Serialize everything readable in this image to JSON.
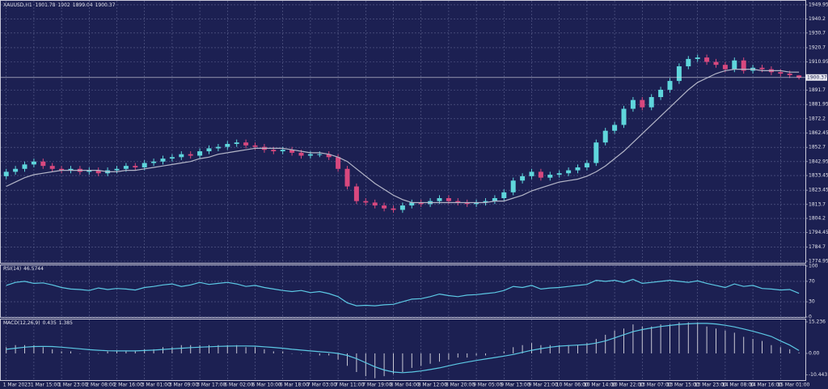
{
  "chart_data": [
    {
      "type": "candlestick",
      "title": "XAUUSD,H1",
      "categories": [
        "1 Mar 2023",
        null,
        null,
        "1 Mar 15:00",
        null,
        null,
        "1 Mar 23:00",
        null,
        null,
        "2 Mar 08:00",
        null,
        null,
        "2 Mar 16:00",
        null,
        null,
        "3 Mar 01:00",
        null,
        null,
        "3 Mar 09:00",
        null,
        null,
        "3 Mar 17:00",
        null,
        null,
        "6 Mar 02:00",
        null,
        null,
        "6 Mar 10:00",
        null,
        null,
        "6 Mar 18:00",
        null,
        null,
        "7 Mar 03:00",
        null,
        null,
        "7 Mar 11:00",
        null,
        null,
        "7 Mar 19:00",
        null,
        null,
        "8 Mar 04:00",
        null,
        null,
        "8 Mar 12:00",
        null,
        null,
        "8 Mar 20:00",
        null,
        null,
        "9 Mar 05:00",
        null,
        null,
        "9 Mar 13:00",
        null,
        null,
        "9 Mar 21:00",
        null,
        null,
        "10 Mar 06:00",
        null,
        null,
        "10 Mar 14:00",
        null,
        null,
        "10 Mar 22:00",
        null,
        null,
        "13 Mar 07:00",
        null,
        null,
        "13 Mar 15:00",
        null,
        null,
        "13 Mar 23:00",
        null,
        null,
        "14 Mar 08:00",
        null,
        null,
        "14 Mar 16:00",
        null,
        null,
        "15 Mar 01:00",
        null,
        null
      ],
      "open": [
        1833,
        1836,
        1838,
        1841,
        1843,
        1840,
        1838,
        1837,
        1838,
        1836,
        1837,
        1835,
        1837,
        1838,
        1840,
        1839,
        1842,
        1843,
        1845,
        1846,
        1848,
        1847,
        1850,
        1852,
        1853,
        1855,
        1856,
        1854,
        1853,
        1851,
        1850,
        1851,
        1849,
        1847,
        1848,
        1848,
        1846,
        1838,
        1826,
        1816,
        1815,
        1813,
        1811,
        1810,
        1813,
        1815,
        1814,
        1816,
        1818,
        1816,
        1815,
        1814,
        1815,
        1816,
        1818,
        1822,
        1830,
        1833,
        1836,
        1832,
        1834,
        1835,
        1837,
        1839,
        1842,
        1856,
        1864,
        1868,
        1879,
        1885,
        1880,
        1887,
        1892,
        1898,
        1908,
        1913,
        1914,
        1911,
        1909,
        1906,
        1912,
        1905,
        1907,
        1906,
        1904,
        1903,
        1901.78
      ],
      "high": [
        1838,
        1840,
        1843,
        1845,
        1845,
        1842,
        1840,
        1840,
        1840,
        1839,
        1839,
        1839,
        1840,
        1842,
        1842,
        1844,
        1845,
        1847,
        1848,
        1850,
        1850,
        1852,
        1854,
        1855,
        1857,
        1858,
        1858,
        1856,
        1855,
        1853,
        1853,
        1853,
        1851,
        1850,
        1850,
        1850,
        1848,
        1840,
        1828,
        1818,
        1817,
        1815,
        1813,
        1815,
        1817,
        1817,
        1818,
        1820,
        1820,
        1818,
        1817,
        1817,
        1818,
        1820,
        1824,
        1832,
        1835,
        1838,
        1838,
        1836,
        1837,
        1839,
        1841,
        1844,
        1858,
        1866,
        1870,
        1881,
        1887,
        1887,
        1889,
        1894,
        1900,
        1910,
        1915,
        1916,
        1916,
        1913,
        1911,
        1914,
        1914,
        1909,
        1909,
        1908,
        1906,
        1905,
        1902.0
      ],
      "low": [
        1831,
        1834,
        1836,
        1839,
        1838,
        1836,
        1835,
        1835,
        1834,
        1834,
        1833,
        1833,
        1835,
        1836,
        1837,
        1837,
        1840,
        1841,
        1843,
        1844,
        1845,
        1845,
        1848,
        1850,
        1851,
        1853,
        1852,
        1851,
        1849,
        1848,
        1848,
        1847,
        1845,
        1845,
        1846,
        1844,
        1836,
        1824,
        1814,
        1813,
        1811,
        1809,
        1808,
        1808,
        1811,
        1812,
        1812,
        1814,
        1814,
        1813,
        1812,
        1812,
        1813,
        1814,
        1816,
        1820,
        1828,
        1831,
        1830,
        1830,
        1832,
        1833,
        1835,
        1837,
        1840,
        1854,
        1862,
        1866,
        1877,
        1878,
        1878,
        1885,
        1890,
        1896,
        1906,
        1911,
        1909,
        1907,
        1904,
        1904,
        1903,
        1903,
        1904,
        1902,
        1901,
        1900,
        1899.04
      ],
      "close": [
        1836,
        1838,
        1841,
        1843,
        1840,
        1838,
        1837,
        1838,
        1836,
        1837,
        1835,
        1837,
        1838,
        1840,
        1839,
        1842,
        1843,
        1845,
        1846,
        1848,
        1847,
        1850,
        1852,
        1853,
        1855,
        1856,
        1854,
        1853,
        1851,
        1850,
        1851,
        1849,
        1847,
        1848,
        1848,
        1846,
        1838,
        1826,
        1816,
        1815,
        1813,
        1811,
        1810,
        1813,
        1815,
        1814,
        1816,
        1818,
        1816,
        1815,
        1814,
        1815,
        1816,
        1818,
        1822,
        1830,
        1833,
        1836,
        1832,
        1834,
        1835,
        1837,
        1839,
        1842,
        1856,
        1864,
        1868,
        1879,
        1885,
        1880,
        1887,
        1892,
        1898,
        1908,
        1913,
        1914,
        1911,
        1909,
        1906,
        1912,
        1905,
        1907,
        1906,
        1904,
        1903,
        1902,
        1900.37
      ],
      "series": [
        {
          "color": "#b4b6c8",
          "values": [
            1826,
            1829,
            1832,
            1834,
            1835,
            1836,
            1837,
            1837,
            1837,
            1837,
            1837,
            1836,
            1836,
            1837,
            1837,
            1838,
            1839,
            1840,
            1841,
            1842,
            1843,
            1845,
            1846,
            1848,
            1849,
            1850,
            1851,
            1852,
            1852,
            1852,
            1852,
            1851,
            1850,
            1849,
            1849,
            1848,
            1846,
            1843,
            1838,
            1833,
            1828,
            1824,
            1820,
            1817,
            1815,
            1815,
            1815,
            1815,
            1815,
            1815,
            1815,
            1815,
            1815,
            1816,
            1816,
            1818,
            1820,
            1823,
            1825,
            1827,
            1829,
            1830,
            1831,
            1833,
            1836,
            1840,
            1845,
            1850,
            1856,
            1862,
            1868,
            1874,
            1880,
            1886,
            1892,
            1897,
            1900,
            1903,
            1905,
            1906,
            1906,
            1906,
            1905,
            1905,
            1905,
            1904,
            1904
          ]
        }
      ],
      "up_color": "#5fd6dc",
      "down_color": "#d8487e",
      "ylim": [
        1773.85,
        1952.7
      ],
      "yticks": [
        1949.95,
        1940.2,
        1930.7,
        1920.7,
        1910.95,
        1891.7,
        1881.95,
        1872.2,
        1862.45,
        1852.7,
        1842.95,
        1833.45,
        1823.45,
        1813.7,
        1804.2,
        1794.45,
        1784.7,
        1774.95
      ],
      "grid": true
    },
    {
      "type": "line",
      "title": "RSI(14)",
      "color": "#5cc8e4",
      "values": [
        62,
        68,
        70,
        66,
        67,
        63,
        58,
        55,
        54,
        52,
        57,
        54,
        56,
        55,
        53,
        58,
        60,
        63,
        65,
        60,
        63,
        68,
        64,
        66,
        68,
        65,
        60,
        62,
        58,
        55,
        52,
        50,
        52,
        48,
        50,
        46,
        40,
        28,
        22,
        23,
        22,
        24,
        25,
        30,
        35,
        36,
        40,
        45,
        42,
        40,
        43,
        44,
        46,
        48,
        52,
        60,
        58,
        62,
        55,
        57,
        58,
        60,
        62,
        64,
        72,
        70,
        72,
        68,
        74,
        66,
        68,
        70,
        72,
        70,
        68,
        71,
        66,
        62,
        58,
        65,
        60,
        62,
        56,
        55,
        53,
        54,
        46.5744
      ],
      "ylim": [
        0,
        100
      ],
      "yticks": [
        100,
        70,
        30,
        0
      ],
      "grid": true
    },
    {
      "type": "macd",
      "title": "MACD(12,26,9)",
      "color": "#c8c8d4",
      "values": [
        3,
        4,
        4,
        4,
        3,
        2,
        1,
        1,
        0,
        0,
        0,
        1,
        1,
        1,
        1,
        2,
        2,
        3,
        3,
        4,
        4,
        4,
        4,
        4,
        4,
        4,
        3,
        3,
        2,
        1,
        1,
        0,
        0,
        0,
        -1,
        -1,
        -3,
        -6,
        -9,
        -11,
        -12,
        -11,
        -10,
        -9,
        -7,
        -6,
        -5,
        -4,
        -3,
        -2,
        -2,
        -1,
        -1,
        0,
        1,
        3,
        4,
        5,
        4,
        4,
        4,
        4,
        4,
        5,
        7,
        9,
        11,
        12,
        14,
        13,
        13,
        14,
        14,
        15,
        15,
        15,
        13,
        12,
        11,
        10,
        8,
        7,
        6,
        4,
        3,
        2,
        0.435
      ],
      "series": [
        {
          "color": "#5cc8e4",
          "values": [
            2,
            2.5,
            3,
            3.3,
            3.4,
            3.3,
            3,
            2.6,
            2.2,
            1.8,
            1.5,
            1.3,
            1.2,
            1.2,
            1.2,
            1.4,
            1.6,
            1.9,
            2.2,
            2.5,
            2.8,
            3,
            3.2,
            3.4,
            3.5,
            3.6,
            3.6,
            3.5,
            3.2,
            2.9,
            2.5,
            2,
            1.6,
            1.2,
            0.8,
            0.5,
            0,
            -1,
            -2.5,
            -4.5,
            -6.5,
            -8,
            -9,
            -9.3,
            -9,
            -8.5,
            -7.8,
            -7,
            -6,
            -5,
            -4.2,
            -3.4,
            -2.7,
            -2,
            -1.3,
            -0.5,
            0.5,
            1.5,
            2.3,
            3,
            3.5,
            3.8,
            4,
            4.3,
            5,
            6,
            7.5,
            9,
            10.5,
            11.5,
            12.3,
            13,
            13.5,
            14,
            14.3,
            14.5,
            14.5,
            14.2,
            13.6,
            12.8,
            11.8,
            10.7,
            9.5,
            8.2,
            6,
            4,
            1.385
          ]
        }
      ],
      "ylim": [
        -12.9,
        16.4
      ],
      "yticks": [
        15.236,
        {
          "value": 0,
          "label": "0.00"
        },
        -10.443
      ],
      "grid": false
    }
  ]
}
